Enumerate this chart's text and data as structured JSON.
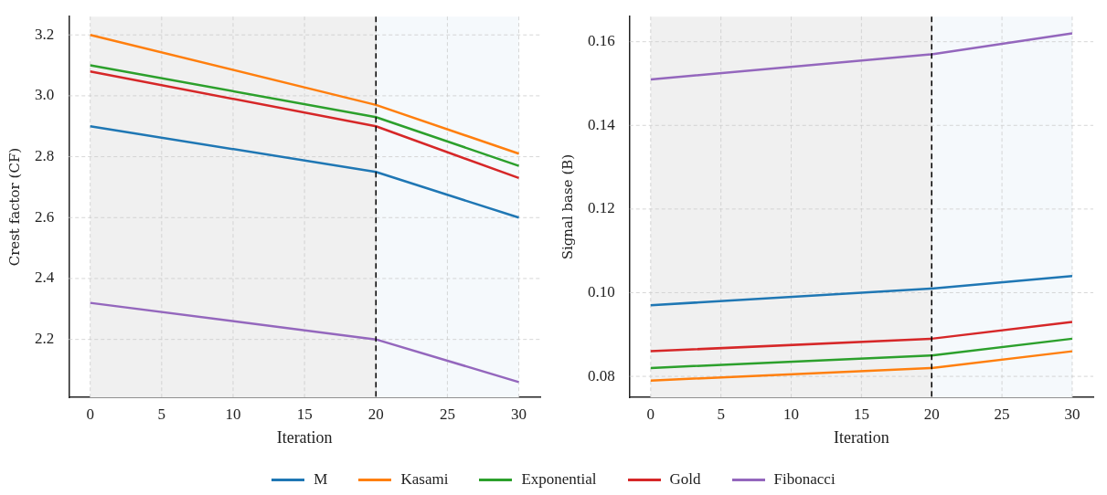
{
  "chart_data": [
    {
      "type": "line",
      "xlabel": "Iteration",
      "ylabel": "Crest factor (CF)",
      "x": [
        0,
        20,
        30
      ],
      "xlim": [
        -1.5,
        31.5
      ],
      "xticks": [
        0,
        5,
        10,
        15,
        20,
        25,
        30
      ],
      "ylim": [
        2.01,
        3.26
      ],
      "yticks": [
        2.2,
        2.4,
        2.6,
        2.8,
        {
          "value": 3.0,
          "label": "3.0"
        },
        3.2
      ],
      "grid": true,
      "legend": "bottom",
      "marker": "none",
      "line_style": "solid",
      "series": [
        {
          "name": "M",
          "color": "#1f77b4",
          "values": [
            2.9,
            2.75,
            2.6
          ]
        },
        {
          "name": "Kasami",
          "color": "#ff7f0e",
          "values": [
            3.2,
            2.97,
            2.81
          ]
        },
        {
          "name": "Exponential",
          "color": "#2ca02c",
          "values": [
            3.1,
            2.93,
            2.77
          ]
        },
        {
          "name": "Gold",
          "color": "#d62728",
          "values": [
            3.08,
            2.9,
            2.73
          ]
        },
        {
          "name": "Fibonacci",
          "color": "#9467bd",
          "values": [
            2.32,
            2.2,
            2.06
          ]
        }
      ],
      "bands": [
        {
          "axis": "x",
          "from": 0,
          "to": 20,
          "color": "#f0f0f0"
        },
        {
          "axis": "x",
          "from": 20,
          "to": 30,
          "color": "#f5f9fc"
        }
      ],
      "ref_lines": [
        {
          "axis": "x",
          "value": 20,
          "color": "#000000",
          "line_style": "dashed"
        }
      ]
    },
    {
      "type": "line",
      "xlabel": "Iteration",
      "ylabel": "Signal base (B)",
      "x": [
        0,
        20,
        30
      ],
      "xlim": [
        -1.5,
        31.5
      ],
      "xticks": [
        0,
        5,
        10,
        15,
        20,
        25,
        30
      ],
      "ylim": [
        0.075,
        0.166
      ],
      "yticks": [
        0.08,
        {
          "value": 0.1,
          "label": "0.10"
        },
        0.12,
        0.14,
        0.16
      ],
      "grid": true,
      "marker": "none",
      "line_style": "solid",
      "series": [
        {
          "name": "M",
          "color": "#1f77b4",
          "values": [
            0.097,
            0.101,
            0.104
          ]
        },
        {
          "name": "Kasami",
          "color": "#ff7f0e",
          "values": [
            0.079,
            0.082,
            0.086
          ]
        },
        {
          "name": "Exponential",
          "color": "#2ca02c",
          "values": [
            0.082,
            0.085,
            0.089
          ]
        },
        {
          "name": "Gold",
          "color": "#d62728",
          "values": [
            0.086,
            0.089,
            0.093
          ]
        },
        {
          "name": "Fibonacci",
          "color": "#9467bd",
          "values": [
            0.151,
            0.157,
            0.162
          ]
        }
      ],
      "bands": [
        {
          "axis": "x",
          "from": 0,
          "to": 20,
          "color": "#f0f0f0"
        },
        {
          "axis": "x",
          "from": 20,
          "to": 30,
          "color": "#f5f9fc"
        }
      ],
      "ref_lines": [
        {
          "axis": "x",
          "value": 20,
          "color": "#000000",
          "line_style": "dashed"
        }
      ]
    }
  ]
}
